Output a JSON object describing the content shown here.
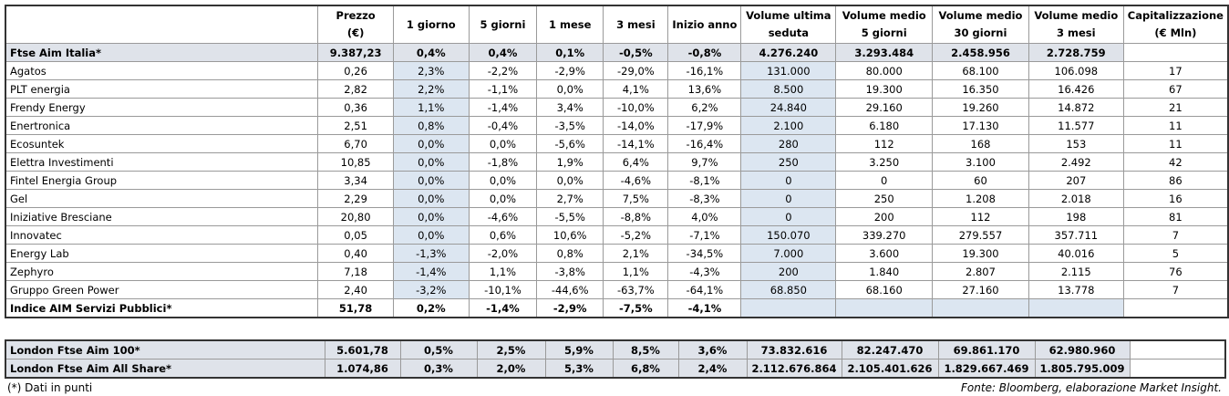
{
  "header": {
    "columns": [
      [
        "Prezzo",
        "(€)"
      ],
      [
        "1 giorno"
      ],
      [
        "5 giorni"
      ],
      [
        "1 mese"
      ],
      [
        "3 mesi"
      ],
      [
        "Inizio anno"
      ],
      [
        "Volume ultima",
        "seduta"
      ],
      [
        "Volume medio",
        "5 giorni"
      ],
      [
        "Volume medio",
        "30 giorni"
      ],
      [
        "Volume medio",
        "3 mesi"
      ],
      [
        "Capitalizzazione",
        "(€ Mln)"
      ]
    ]
  },
  "main": {
    "rows": [
      [
        "Ftse Aim Italia*",
        "9.387,23",
        "0,4%",
        "0,4%",
        "0,1%",
        "-0,5%",
        "-0,8%",
        "4.276.240",
        "3.293.484",
        "2.458.956",
        "2.728.759"
      ],
      [
        "Agatos",
        "0,26",
        "2,3%",
        "-2,2%",
        "-2,9%",
        "-29,0%",
        "-16,1%",
        "131.000",
        "80.000",
        "68.100",
        "106.098",
        "17"
      ],
      [
        "PLT energia",
        "2,82",
        "2,2%",
        "-1,1%",
        "0,0%",
        "4,1%",
        "13,6%",
        "8.500",
        "19.300",
        "16.350",
        "16.426",
        "67"
      ],
      [
        "Frendy Energy",
        "0,36",
        "1,1%",
        "-1,4%",
        "3,4%",
        "-10,0%",
        "6,2%",
        "24.840",
        "29.160",
        "19.260",
        "14.872",
        "21"
      ],
      [
        "Enertronica",
        "2,51",
        "0,8%",
        "-0,4%",
        "-3,5%",
        "-14,0%",
        "-17,9%",
        "2.100",
        "6.180",
        "17.130",
        "11.577",
        "11"
      ],
      [
        "Ecosuntek",
        "6,70",
        "0,0%",
        "0,0%",
        "-5,6%",
        "-14,1%",
        "-16,4%",
        "280",
        "112",
        "168",
        "153",
        "11"
      ],
      [
        "Elettra Investimenti",
        "10,85",
        "0,0%",
        "-1,8%",
        "1,9%",
        "6,4%",
        "9,7%",
        "250",
        "3.250",
        "3.100",
        "2.492",
        "42"
      ],
      [
        "Fintel Energia Group",
        "3,34",
        "0,0%",
        "0,0%",
        "0,0%",
        "-4,6%",
        "-8,1%",
        "0",
        "0",
        "60",
        "207",
        "86"
      ],
      [
        "Gel",
        "2,29",
        "0,0%",
        "0,0%",
        "2,7%",
        "7,5%",
        "-8,3%",
        "0",
        "250",
        "1.208",
        "2.018",
        "16"
      ],
      [
        "Iniziative Bresciane",
        "20,80",
        "0,0%",
        "-4,6%",
        "-5,5%",
        "-8,8%",
        "4,0%",
        "0",
        "200",
        "112",
        "198",
        "81"
      ],
      [
        "Innovatec",
        "0,05",
        "0,0%",
        "0,6%",
        "10,6%",
        "-5,2%",
        "-7,1%",
        "150.070",
        "339.270",
        "279.557",
        "357.711",
        "7"
      ],
      [
        "Energy Lab",
        "0,40",
        "-1,3%",
        "-2,0%",
        "0,8%",
        "2,1%",
        "-34,5%",
        "7.000",
        "3.600",
        "19.300",
        "40.016",
        "5"
      ],
      [
        "Zephyro",
        "7,18",
        "-1,4%",
        "1,1%",
        "-3,8%",
        "1,1%",
        "-4,3%",
        "200",
        "1.840",
        "2.807",
        "2.115",
        "76"
      ],
      [
        "Gruppo Green Power",
        "2,40",
        "-3,2%",
        "-10,1%",
        "-44,6%",
        "-63,7%",
        "-64,1%",
        "68.850",
        "68.160",
        "27.160",
        "13.778",
        "7"
      ],
      [
        "Indice AIM Servizi Pubblici*",
        "51,78",
        "0,2%",
        "-1,4%",
        "-2,9%",
        "-7,5%",
        "-4,1%"
      ]
    ]
  },
  "london": {
    "rows": [
      [
        "London Ftse Aim 100*",
        "5.601,78",
        "0,5%",
        "2,5%",
        "5,9%",
        "8,5%",
        "3,6%",
        "73.832.616",
        "82.247.470",
        "69.861.170",
        "62.980.960"
      ],
      [
        "London Ftse Aim All Share*",
        "1.074,86",
        "0,3%",
        "2,0%",
        "5,3%",
        "6,8%",
        "2,4%",
        "2.112.676.864",
        "2.105.401.626",
        "1.829.667.469",
        "1.805.795.009"
      ]
    ]
  },
  "footer": {
    "note": "(*) Dati in punti",
    "source": "Fonte: Bloomberg, elaborazione Market Insight."
  }
}
